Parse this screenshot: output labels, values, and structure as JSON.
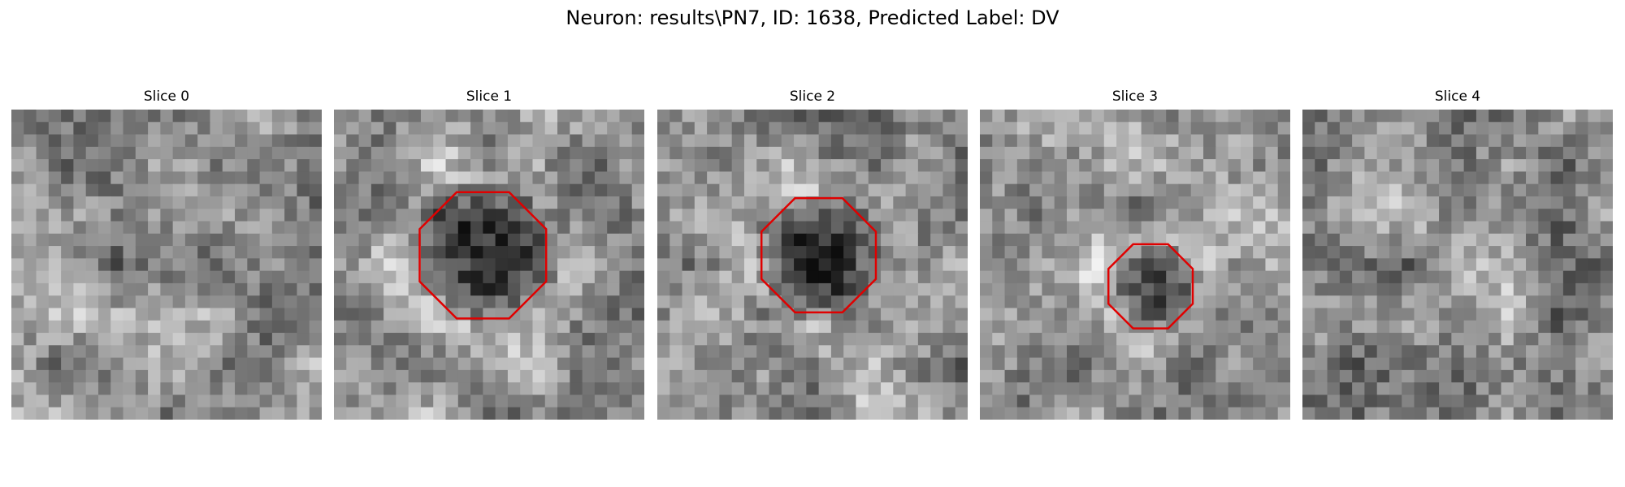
{
  "title": "Neuron: results\\PN7, ID: 1638, Predicted Label: DV",
  "outline_color": "#e00000",
  "grid_size": 25,
  "panels": [
    {
      "label": "Slice 0",
      "center": [
        0.5,
        0.35
      ],
      "dark_radius": 0.0,
      "seed": 11,
      "has_outline": false
    },
    {
      "label": "Slice 1",
      "center": [
        0.48,
        0.47
      ],
      "dark_radius": 0.21,
      "seed": 23,
      "has_outline": true
    },
    {
      "label": "Slice 2",
      "center": [
        0.52,
        0.47
      ],
      "dark_radius": 0.19,
      "seed": 37,
      "has_outline": true
    },
    {
      "label": "Slice 3",
      "center": [
        0.55,
        0.57
      ],
      "dark_radius": 0.14,
      "seed": 51,
      "has_outline": true
    },
    {
      "label": "Slice 4",
      "center": [
        0.5,
        0.5
      ],
      "dark_radius": 0.0,
      "seed": 67,
      "has_outline": false
    }
  ]
}
